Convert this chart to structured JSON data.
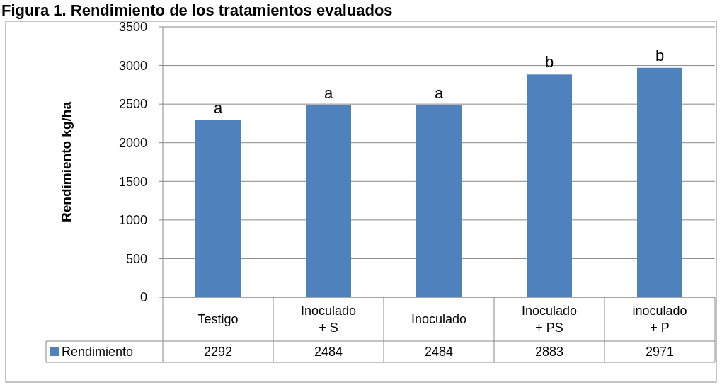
{
  "chart_data": {
    "type": "bar",
    "title": "Figura 1. Rendimiento de los tratamientos evaluados",
    "ylabel": "Rendimiento kg/ha",
    "categories": [
      "Testigo",
      "Inoculado + S",
      "Inoculado",
      "Inoculado + PS",
      "inoculado + P"
    ],
    "series": [
      {
        "name": "Rendimiento",
        "color": "#4f81bd",
        "values": [
          2292,
          2484,
          2484,
          2883,
          2971
        ]
      }
    ],
    "ylim": [
      0,
      3500
    ],
    "yticks": [
      0,
      500,
      1000,
      1500,
      2000,
      2500,
      3000,
      3500
    ],
    "grid": "y",
    "legend": "bottom",
    "data_labels": true,
    "annotations": [
      {
        "text": "a",
        "x": "Testigo",
        "y": 2292
      },
      {
        "text": "a",
        "x": "Inoculado + S",
        "y": 2484
      },
      {
        "text": "a",
        "x": "Inoculado",
        "y": 2484
      },
      {
        "text": "b",
        "x": "Inoculado + PS",
        "y": 2883
      },
      {
        "text": "b",
        "x": "inoculado + P",
        "y": 2971
      }
    ]
  }
}
